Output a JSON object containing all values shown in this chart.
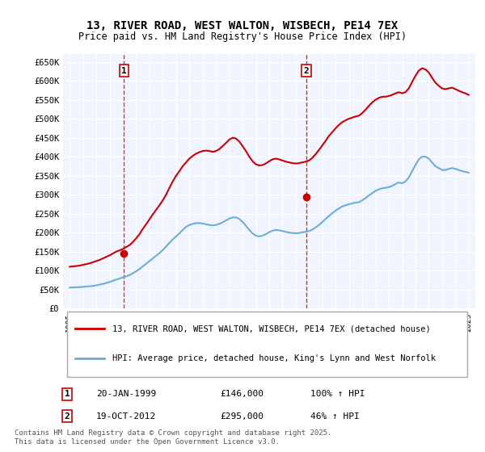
{
  "title": "13, RIVER ROAD, WEST WALTON, WISBECH, PE14 7EX",
  "subtitle": "Price paid vs. HM Land Registry's House Price Index (HPI)",
  "legend_line1": "13, RIVER ROAD, WEST WALTON, WISBECH, PE14 7EX (detached house)",
  "legend_line2": "HPI: Average price, detached house, King's Lynn and West Norfolk",
  "footnote": "Contains HM Land Registry data © Crown copyright and database right 2025.\nThis data is licensed under the Open Government Licence v3.0.",
  "sale1_label": "1",
  "sale1_date": "20-JAN-1999",
  "sale1_price": "£146,000",
  "sale1_hpi": "100% ↑ HPI",
  "sale2_label": "2",
  "sale2_date": "19-OCT-2012",
  "sale2_price": "£295,000",
  "sale2_hpi": "46% ↑ HPI",
  "vline1_x": 1999.07,
  "vline2_x": 2012.8,
  "dot1_x": 1999.07,
  "dot1_y": 146000,
  "dot2_x": 2012.8,
  "dot2_y": 295000,
  "hpi_color": "#6baed6",
  "price_color": "#cc0000",
  "vline_color": "#cc0000",
  "background_color": "#f0f4ff",
  "grid_color": "#ffffff",
  "ylim": [
    0,
    670000
  ],
  "xlim": [
    1994.5,
    2025.5
  ],
  "yticks": [
    0,
    50000,
    100000,
    150000,
    200000,
    250000,
    300000,
    350000,
    400000,
    450000,
    500000,
    550000,
    600000,
    650000
  ],
  "ytick_labels": [
    "£0",
    "£50K",
    "£100K",
    "£150K",
    "£200K",
    "£250K",
    "£300K",
    "£350K",
    "£400K",
    "£450K",
    "£500K",
    "£550K",
    "£600K",
    "£650K"
  ],
  "xticks": [
    1995,
    1996,
    1997,
    1998,
    1999,
    2000,
    2001,
    2002,
    2003,
    2004,
    2005,
    2006,
    2007,
    2008,
    2009,
    2010,
    2011,
    2012,
    2013,
    2014,
    2015,
    2016,
    2017,
    2018,
    2019,
    2020,
    2021,
    2022,
    2023,
    2024,
    2025
  ],
  "hpi_x": [
    1995.0,
    1995.25,
    1995.5,
    1995.75,
    1996.0,
    1996.25,
    1996.5,
    1996.75,
    1997.0,
    1997.25,
    1997.5,
    1997.75,
    1998.0,
    1998.25,
    1998.5,
    1998.75,
    1999.0,
    1999.25,
    1999.5,
    1999.75,
    2000.0,
    2000.25,
    2000.5,
    2000.75,
    2001.0,
    2001.25,
    2001.5,
    2001.75,
    2002.0,
    2002.25,
    2002.5,
    2002.75,
    2003.0,
    2003.25,
    2003.5,
    2003.75,
    2004.0,
    2004.25,
    2004.5,
    2004.75,
    2005.0,
    2005.25,
    2005.5,
    2005.75,
    2006.0,
    2006.25,
    2006.5,
    2006.75,
    2007.0,
    2007.25,
    2007.5,
    2007.75,
    2008.0,
    2008.25,
    2008.5,
    2008.75,
    2009.0,
    2009.25,
    2009.5,
    2009.75,
    2010.0,
    2010.25,
    2010.5,
    2010.75,
    2011.0,
    2011.25,
    2011.5,
    2011.75,
    2012.0,
    2012.25,
    2012.5,
    2012.75,
    2013.0,
    2013.25,
    2013.5,
    2013.75,
    2014.0,
    2014.25,
    2014.5,
    2014.75,
    2015.0,
    2015.25,
    2015.5,
    2015.75,
    2016.0,
    2016.25,
    2016.5,
    2016.75,
    2017.0,
    2017.25,
    2017.5,
    2017.75,
    2018.0,
    2018.25,
    2018.5,
    2018.75,
    2019.0,
    2019.25,
    2019.5,
    2019.75,
    2020.0,
    2020.25,
    2020.5,
    2020.75,
    2021.0,
    2021.25,
    2021.5,
    2021.75,
    2022.0,
    2022.25,
    2022.5,
    2022.75,
    2023.0,
    2023.25,
    2023.5,
    2023.75,
    2024.0,
    2024.25,
    2024.5,
    2024.75,
    2025.0
  ],
  "hpi_y": [
    55000,
    55500,
    55800,
    56200,
    57000,
    57800,
    58500,
    59500,
    61000,
    63000,
    65000,
    67000,
    70000,
    73000,
    76000,
    79000,
    82000,
    85000,
    88000,
    93000,
    98000,
    104000,
    111000,
    118000,
    125000,
    132000,
    139000,
    146000,
    154000,
    163000,
    173000,
    182000,
    190000,
    198000,
    207000,
    215000,
    220000,
    223000,
    225000,
    225000,
    224000,
    222000,
    220000,
    219000,
    220000,
    223000,
    227000,
    232000,
    237000,
    240000,
    240000,
    236000,
    228000,
    218000,
    207000,
    198000,
    192000,
    190000,
    192000,
    196000,
    201000,
    205000,
    207000,
    206000,
    204000,
    202000,
    200000,
    199000,
    198000,
    199000,
    201000,
    202000,
    204000,
    208000,
    214000,
    220000,
    228000,
    236000,
    244000,
    251000,
    258000,
    264000,
    269000,
    272000,
    275000,
    277000,
    279000,
    280000,
    285000,
    291000,
    298000,
    304000,
    310000,
    314000,
    317000,
    318000,
    320000,
    323000,
    328000,
    332000,
    330000,
    335000,
    345000,
    362000,
    378000,
    393000,
    400000,
    400000,
    395000,
    385000,
    375000,
    370000,
    365000,
    365000,
    368000,
    370000,
    368000,
    365000,
    362000,
    360000,
    358000
  ],
  "price_x": [
    1995.0,
    1995.25,
    1995.5,
    1995.75,
    1996.0,
    1996.25,
    1996.5,
    1996.75,
    1997.0,
    1997.25,
    1997.5,
    1997.75,
    1998.0,
    1998.25,
    1998.5,
    1998.75,
    1999.0,
    1999.25,
    1999.5,
    1999.75,
    2000.0,
    2000.25,
    2000.5,
    2000.75,
    2001.0,
    2001.25,
    2001.5,
    2001.75,
    2002.0,
    2002.25,
    2002.5,
    2002.75,
    2003.0,
    2003.25,
    2003.5,
    2003.75,
    2004.0,
    2004.25,
    2004.5,
    2004.75,
    2005.0,
    2005.25,
    2005.5,
    2005.75,
    2006.0,
    2006.25,
    2006.5,
    2006.75,
    2007.0,
    2007.25,
    2007.5,
    2007.75,
    2008.0,
    2008.25,
    2008.5,
    2008.75,
    2009.0,
    2009.25,
    2009.5,
    2009.75,
    2010.0,
    2010.25,
    2010.5,
    2010.75,
    2011.0,
    2011.25,
    2011.5,
    2011.75,
    2012.0,
    2012.25,
    2012.5,
    2012.75,
    2013.0,
    2013.25,
    2013.5,
    2013.75,
    2014.0,
    2014.25,
    2014.5,
    2014.75,
    2015.0,
    2015.25,
    2015.5,
    2015.75,
    2016.0,
    2016.25,
    2016.5,
    2016.75,
    2017.0,
    2017.25,
    2017.5,
    2017.75,
    2018.0,
    2018.25,
    2018.5,
    2018.75,
    2019.0,
    2019.25,
    2019.5,
    2019.75,
    2020.0,
    2020.25,
    2020.5,
    2020.75,
    2021.0,
    2021.25,
    2021.5,
    2021.75,
    2022.0,
    2022.25,
    2022.5,
    2022.75,
    2023.0,
    2023.25,
    2023.5,
    2023.75,
    2024.0,
    2024.25,
    2024.5,
    2024.75,
    2025.0
  ],
  "price_y": [
    110000,
    111000,
    112000,
    113000,
    115000,
    117000,
    119000,
    122000,
    125000,
    128000,
    132000,
    136000,
    140000,
    145000,
    150000,
    153000,
    157000,
    162000,
    167000,
    175000,
    185000,
    196000,
    210000,
    222000,
    235000,
    248000,
    260000,
    272000,
    285000,
    300000,
    318000,
    335000,
    350000,
    362000,
    375000,
    385000,
    395000,
    402000,
    408000,
    412000,
    415000,
    416000,
    415000,
    413000,
    415000,
    420000,
    428000,
    436000,
    445000,
    450000,
    448000,
    440000,
    428000,
    415000,
    400000,
    388000,
    380000,
    377000,
    378000,
    382000,
    388000,
    393000,
    395000,
    393000,
    390000,
    387000,
    385000,
    383000,
    382000,
    383000,
    385000,
    387000,
    390000,
    397000,
    407000,
    418000,
    430000,
    442000,
    455000,
    465000,
    475000,
    484000,
    491000,
    496000,
    500000,
    503000,
    506000,
    508000,
    515000,
    524000,
    534000,
    543000,
    550000,
    555000,
    558000,
    558000,
    560000,
    563000,
    567000,
    570000,
    567000,
    570000,
    580000,
    597000,
    613000,
    627000,
    633000,
    630000,
    622000,
    608000,
    595000,
    587000,
    580000,
    578000,
    580000,
    582000,
    578000,
    574000,
    570000,
    567000,
    563000
  ]
}
